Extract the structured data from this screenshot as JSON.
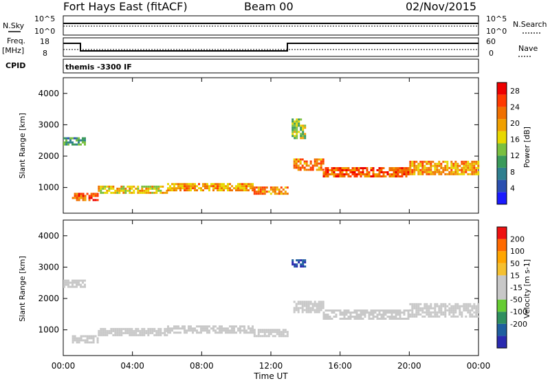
{
  "header": {
    "title": "Fort Hays East (fitACF)",
    "beam": "Beam 00",
    "date": "02/Nov/2015"
  },
  "status_panels": {
    "nsky_label": "N.Sky",
    "nsky_ticks": [
      "10^5",
      "10^0"
    ],
    "nsearch_label": "N.Search",
    "nsearch_ticks": [
      "10^5",
      "10^0"
    ],
    "freq_label": "Freq.",
    "freq_unit": "[MHz]",
    "freq_ticks": [
      "18",
      "8"
    ],
    "nave_label": "Nave",
    "nave_ticks": [
      "60",
      "0"
    ],
    "cpid_label": "CPID",
    "cpid_value": "themis -3300 IF"
  },
  "colors": {
    "power_scale": [
      "#1a1aff",
      "#2a4fb0",
      "#2f7f8f",
      "#3a9a5a",
      "#7ac040",
      "#e8d800",
      "#f0a000",
      "#f07000",
      "#ff3a00",
      "#ee0000"
    ],
    "velocity_scale": [
      "#ee1111",
      "#ff6a00",
      "#ffa500",
      "#f5c030",
      "#c8c8c8",
      "#c8c8c8",
      "#66cc33",
      "#2f8f5f",
      "#1f5f9f",
      "#2a2ab0"
    ]
  },
  "chart_data": [
    {
      "type": "heatmap",
      "title": "Power",
      "xlabel": "Time UT",
      "ylabel": "Slant Range [km]",
      "xlim": [
        0,
        24
      ],
      "ylim": [
        180,
        4500
      ],
      "x_ticks": [
        "00:00",
        "04:00",
        "08:00",
        "12:00",
        "16:00",
        "20:00",
        "00:00"
      ],
      "y_ticks": [
        "1000",
        "2000",
        "3000",
        "4000"
      ],
      "colorbar": {
        "label": "Power [dB]",
        "ticks": [
          "4",
          "8",
          "12",
          "16",
          "20",
          "24",
          "28"
        ],
        "range": [
          0,
          30
        ]
      },
      "scatter_bands": [
        {
          "t_start": 0.5,
          "t_end": 2.0,
          "range_center": 700,
          "range_width": 260,
          "value": 24
        },
        {
          "t_start": 2.0,
          "t_end": 6.0,
          "range_center": 930,
          "range_width": 260,
          "value": 18
        },
        {
          "t_start": 6.0,
          "t_end": 11.0,
          "range_center": 1020,
          "range_width": 240,
          "value": 20
        },
        {
          "t_start": 11.0,
          "t_end": 13.0,
          "range_center": 900,
          "range_width": 260,
          "value": 22
        },
        {
          "t_start": 13.3,
          "t_end": 15.0,
          "range_center": 1750,
          "range_width": 350,
          "value": 22
        },
        {
          "t_start": 15.0,
          "t_end": 20.0,
          "range_center": 1500,
          "range_width": 300,
          "value": 24
        },
        {
          "t_start": 20.0,
          "t_end": 24.0,
          "range_center": 1650,
          "range_width": 400,
          "value": 20
        },
        {
          "t_start": 0.0,
          "t_end": 1.2,
          "range_center": 2500,
          "range_width": 200,
          "value": 10
        },
        {
          "t_start": 13.2,
          "t_end": 14.0,
          "range_center": 2900,
          "range_width": 600,
          "value": 14
        }
      ]
    },
    {
      "type": "heatmap",
      "title": "Velocity",
      "xlabel": "Time UT",
      "ylabel": "Slant Range [km]",
      "xlim": [
        0,
        24
      ],
      "ylim": [
        180,
        4500
      ],
      "x_ticks": [
        "00:00",
        "04:00",
        "08:00",
        "12:00",
        "16:00",
        "20:00",
        "00:00"
      ],
      "y_ticks": [
        "1000",
        "2000",
        "3000",
        "4000"
      ],
      "colorbar": {
        "label": "Velocity [m s-1]",
        "ticks": [
          "200",
          "100",
          "50",
          "15",
          "-15",
          "-50",
          "-100",
          "-200"
        ],
        "range": [
          -250,
          250
        ]
      },
      "scatter_bands": [
        {
          "t_start": 0.5,
          "t_end": 2.0,
          "range_center": 700,
          "range_width": 260,
          "value": 40
        },
        {
          "t_start": 2.0,
          "t_end": 6.0,
          "range_center": 930,
          "range_width": 260,
          "value": -30
        },
        {
          "t_start": 6.0,
          "t_end": 11.0,
          "range_center": 1020,
          "range_width": 240,
          "value": -10
        },
        {
          "t_start": 11.0,
          "t_end": 13.0,
          "range_center": 900,
          "range_width": 260,
          "value": 40
        },
        {
          "t_start": 13.3,
          "t_end": 15.0,
          "range_center": 1750,
          "range_width": 350,
          "value": 0
        },
        {
          "t_start": 15.0,
          "t_end": 20.0,
          "range_center": 1500,
          "range_width": 300,
          "value": 0
        },
        {
          "t_start": 20.0,
          "t_end": 24.0,
          "range_center": 1650,
          "range_width": 400,
          "value": 0
        },
        {
          "t_start": 0.0,
          "t_end": 1.2,
          "range_center": 2500,
          "range_width": 200,
          "value": -40
        },
        {
          "t_start": 13.2,
          "t_end": 14.0,
          "range_center": 3150,
          "range_width": 200,
          "value": -200
        }
      ]
    }
  ]
}
